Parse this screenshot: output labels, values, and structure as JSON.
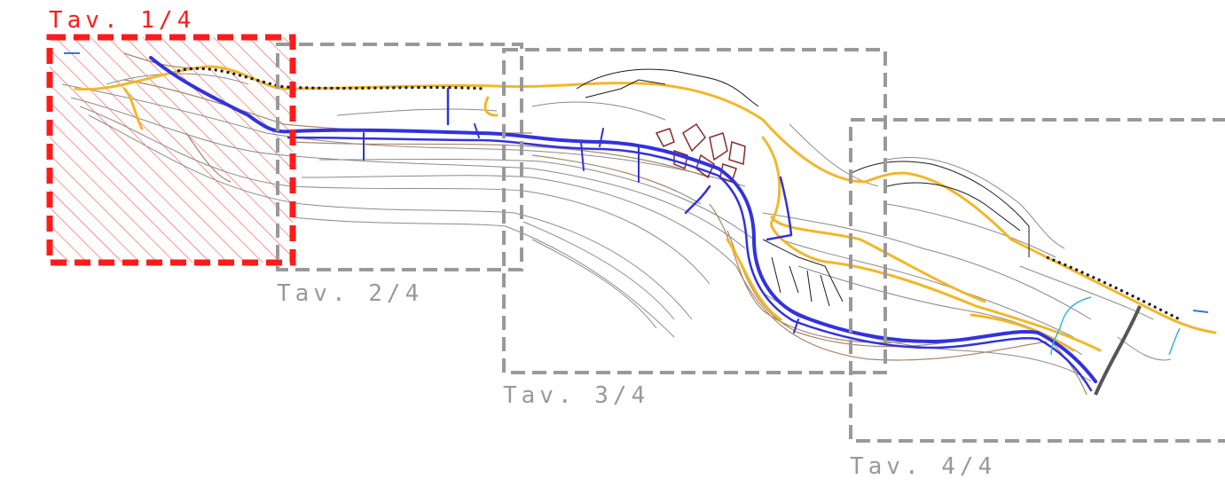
{
  "sheets": [
    {
      "label": "Tav. 1/4",
      "selected": true
    },
    {
      "label": "Tav. 2/4",
      "selected": false
    },
    {
      "label": "Tav. 3/4",
      "selected": false
    },
    {
      "label": "Tav. 4/4",
      "selected": false
    }
  ],
  "colors": {
    "selected_frame": "#ff1a1a",
    "frame": "#999999",
    "river": "#3232dd",
    "road": "#f2b72a",
    "contour": "#8a8a8a",
    "terrain": "#a8866a",
    "railway": "#1a1a1a",
    "stream": "#33b4e8",
    "buildings": "#8b2a2a"
  }
}
